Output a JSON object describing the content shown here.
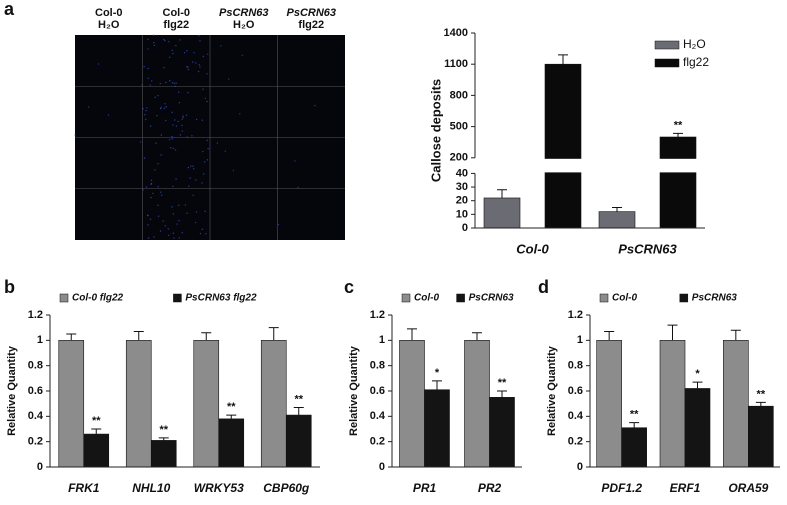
{
  "chart_data": [
    {
      "type": "image",
      "panel": "a",
      "column_labels": [
        [
          "Col-0",
          "H₂O"
        ],
        [
          "Col-0",
          "flg22"
        ],
        [
          "PsCRN63",
          "H₂O"
        ],
        [
          "PsCRN63",
          "flg22"
        ]
      ]
    },
    {
      "type": "bar",
      "y_label": "Callose deposits",
      "categories": [
        "Col-0",
        "PsCRN63"
      ],
      "series": [
        {
          "name": "H₂O",
          "color": "#6b6b73",
          "values": [
            22,
            12
          ],
          "errors": [
            6,
            3
          ],
          "significance": [
            null,
            null
          ]
        },
        {
          "name": "flg22",
          "color": "#0a0a0a",
          "values": [
            1100,
            400
          ],
          "errors": [
            90,
            35
          ],
          "significance": [
            null,
            "**"
          ]
        }
      ],
      "ylim": [
        0,
        1400
      ],
      "axis_break": [
        40,
        200
      ],
      "yticks": [
        0,
        10,
        20,
        30,
        40,
        200,
        500,
        800,
        1100,
        1400
      ],
      "legend": "top-right"
    },
    {
      "type": "bar",
      "panel": "b",
      "y_label": "Relative Quantity",
      "categories": [
        "FRK1",
        "NHL10",
        "WRKY53",
        "CBP60g"
      ],
      "series": [
        {
          "name": "Col-0 flg22",
          "color": "#8c8c8c",
          "values": [
            1,
            1,
            1,
            1
          ],
          "errors": [
            0.05,
            0.07,
            0.06,
            0.1
          ],
          "significance": [
            null,
            null,
            null,
            null
          ]
        },
        {
          "name": "PsCRN63 flg22",
          "color": "#141414",
          "values": [
            0.26,
            0.21,
            0.38,
            0.41
          ],
          "errors": [
            0.04,
            0.02,
            0.03,
            0.06
          ],
          "significance": [
            "**",
            "**",
            "**",
            "**"
          ]
        }
      ],
      "ylim": [
        0,
        1.2
      ],
      "yticks": [
        0,
        0.2,
        0.4,
        0.6,
        0.8,
        1,
        1.2
      ],
      "legend": "top"
    },
    {
      "type": "bar",
      "panel": "c",
      "y_label": "Relative Quantity",
      "categories": [
        "PR1",
        "PR2"
      ],
      "series": [
        {
          "name": "Col-0",
          "color": "#8c8c8c",
          "values": [
            1,
            1
          ],
          "errors": [
            0.09,
            0.06
          ],
          "significance": [
            null,
            null
          ]
        },
        {
          "name": "PsCRN63",
          "color": "#141414",
          "values": [
            0.61,
            0.55
          ],
          "errors": [
            0.07,
            0.05
          ],
          "significance": [
            "*",
            "**"
          ]
        }
      ],
      "ylim": [
        0,
        1.2
      ],
      "yticks": [
        0,
        0.2,
        0.4,
        0.6,
        0.8,
        1,
        1.2
      ],
      "legend": "top"
    },
    {
      "type": "bar",
      "panel": "d",
      "y_label": "Relative Quantity",
      "categories": [
        "PDF1.2",
        "ERF1",
        "ORA59"
      ],
      "series": [
        {
          "name": "Col-0",
          "color": "#8c8c8c",
          "values": [
            1,
            1,
            1
          ],
          "errors": [
            0.07,
            0.12,
            0.08
          ],
          "significance": [
            null,
            null,
            null
          ]
        },
        {
          "name": "PsCRN63",
          "color": "#141414",
          "values": [
            0.31,
            0.62,
            0.48
          ],
          "errors": [
            0.04,
            0.05,
            0.03
          ],
          "significance": [
            "**",
            "*",
            "**"
          ]
        }
      ],
      "ylim": [
        0,
        1.2
      ],
      "yticks": [
        0,
        0.2,
        0.4,
        0.6,
        0.8,
        1,
        1.2
      ],
      "legend": "top"
    }
  ]
}
